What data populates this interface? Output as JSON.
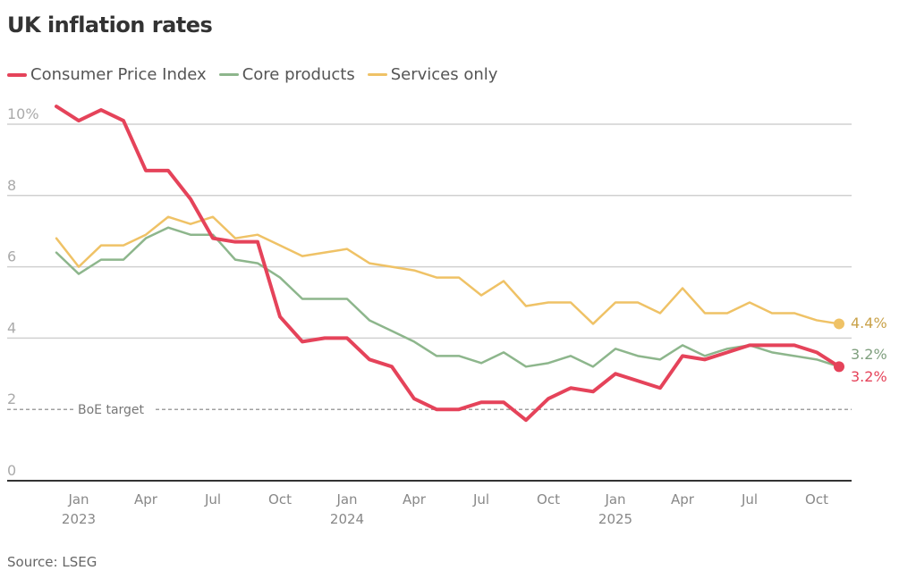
{
  "chart_data": {
    "type": "line",
    "title": "UK inflation rates",
    "xlabel": "",
    "ylabel": "",
    "ylim": [
      0,
      10
    ],
    "y_ticks": [
      {
        "value": 0,
        "label": "0"
      },
      {
        "value": 2,
        "label": "2"
      },
      {
        "value": 4,
        "label": "4"
      },
      {
        "value": 6,
        "label": "6"
      },
      {
        "value": 8,
        "label": "8"
      },
      {
        "value": 10,
        "label": "10%"
      }
    ],
    "x_start": "2022-12",
    "x_end": "2025-11",
    "x": [
      "Dec 2022",
      "Jan 2023",
      "Feb 2023",
      "Mar 2023",
      "Apr 2023",
      "May 2023",
      "Jun 2023",
      "Jul 2023",
      "Aug 2023",
      "Sep 2023",
      "Oct 2023",
      "Nov 2023",
      "Dec 2023",
      "Jan 2024",
      "Feb 2024",
      "Mar 2024",
      "Apr 2024",
      "May 2024",
      "Jun 2024",
      "Jul 2024",
      "Aug 2024",
      "Sep 2024",
      "Oct 2024",
      "Nov 2024",
      "Dec 2024",
      "Jan 2025",
      "Feb 2025",
      "Mar 2025",
      "Apr 2025",
      "May 2025",
      "Jun 2025",
      "Jul 2025",
      "Aug 2025",
      "Sep 2025",
      "Oct 2025",
      "Nov 2025"
    ],
    "x_ticks": [
      {
        "index": 1,
        "label": "Jan",
        "year": "2023"
      },
      {
        "index": 4,
        "label": "Apr",
        "year": ""
      },
      {
        "index": 7,
        "label": "Jul",
        "year": ""
      },
      {
        "index": 10,
        "label": "Oct",
        "year": ""
      },
      {
        "index": 13,
        "label": "Jan",
        "year": "2024"
      },
      {
        "index": 16,
        "label": "Apr",
        "year": ""
      },
      {
        "index": 19,
        "label": "Jul",
        "year": ""
      },
      {
        "index": 22,
        "label": "Oct",
        "year": ""
      },
      {
        "index": 25,
        "label": "Jan",
        "year": "2025"
      },
      {
        "index": 28,
        "label": "Apr",
        "year": ""
      },
      {
        "index": 31,
        "label": "Jul",
        "year": ""
      },
      {
        "index": 34,
        "label": "Oct",
        "year": ""
      }
    ],
    "series": [
      {
        "name": "Consumer Price Index",
        "color": "#e5435a",
        "end_label": "3.2%",
        "values": [
          10.5,
          10.1,
          10.4,
          10.1,
          8.7,
          8.7,
          7.9,
          6.8,
          6.7,
          6.7,
          4.6,
          3.9,
          4.0,
          4.0,
          3.4,
          3.2,
          2.3,
          2.0,
          2.0,
          2.2,
          2.2,
          1.7,
          2.3,
          2.6,
          2.5,
          3.0,
          2.8,
          2.6,
          3.5,
          3.4,
          3.6,
          3.8,
          3.8,
          3.8,
          3.6,
          3.2
        ]
      },
      {
        "name": "Core products",
        "color": "#8db68c",
        "end_label": "3.2%",
        "values": [
          6.4,
          5.8,
          6.2,
          6.2,
          6.8,
          7.1,
          6.9,
          6.9,
          6.2,
          6.1,
          5.7,
          5.1,
          5.1,
          5.1,
          4.5,
          4.2,
          3.9,
          3.5,
          3.5,
          3.3,
          3.6,
          3.2,
          3.3,
          3.5,
          3.2,
          3.7,
          3.5,
          3.4,
          3.8,
          3.5,
          3.7,
          3.8,
          3.6,
          3.5,
          3.4,
          3.2
        ]
      },
      {
        "name": "Services only",
        "color": "#efc266",
        "end_label": "4.4%",
        "values": [
          6.8,
          6.0,
          6.6,
          6.6,
          6.9,
          7.4,
          7.2,
          7.4,
          6.8,
          6.9,
          6.6,
          6.3,
          6.4,
          6.5,
          6.1,
          6.0,
          5.9,
          5.7,
          5.7,
          5.2,
          5.6,
          4.9,
          5.0,
          5.0,
          4.4,
          5.0,
          5.0,
          4.7,
          5.4,
          4.7,
          4.7,
          5.0,
          4.7,
          4.7,
          4.5,
          4.4
        ]
      }
    ],
    "end_label_colors": [
      "#e5435a",
      "#7f9f7e",
      "#c9a24a"
    ],
    "reference_line": {
      "value": 2,
      "label": "BoE target",
      "style": "dashed"
    },
    "grid": true,
    "legend": "top-left"
  },
  "header": {
    "title": "UK inflation rates"
  },
  "legend": [
    {
      "label": "Consumer Price Index",
      "color": "#e5435a"
    },
    {
      "label": "Core products",
      "color": "#8db68c"
    },
    {
      "label": "Services only",
      "color": "#efc266"
    }
  ],
  "footer": {
    "source": "Source: LSEG"
  }
}
